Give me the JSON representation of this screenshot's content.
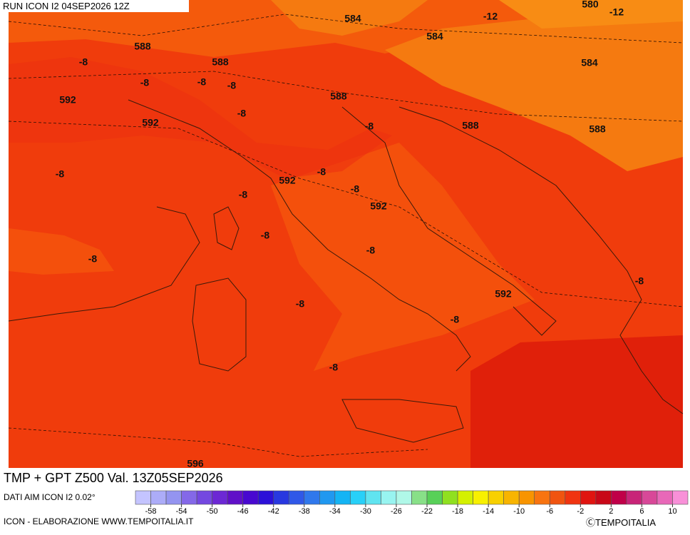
{
  "header": {
    "run": "RUN ICON I2 04SEP2026 12Z",
    "title": "TMP + GPT Z500 Val. 13Z05SEP2026",
    "source": "DATI AIM ICON I2 0.02°",
    "credit_left": "ICON - ELABORAZIONE WWW.TEMPOITALIA.IT",
    "credit_right": "ⒸTEMPOITALIA"
  },
  "map": {
    "labels": [
      "584",
      "580",
      "-12",
      "-12",
      "584",
      "588",
      "-8",
      "588",
      "584",
      "-8",
      "-8",
      "-8",
      "592",
      "588",
      "-8",
      "592",
      "-8",
      "588",
      "588",
      "-8",
      "-8",
      "592",
      "-8",
      "-8",
      "592",
      "-8",
      "-8",
      "-8",
      "-8",
      "592",
      "-8",
      "-8",
      "-8",
      "596"
    ]
  },
  "legend": {
    "colors": [
      "#c4c4ff",
      "#acacf8",
      "#9494f0",
      "#8468e8",
      "#7448e0",
      "#6c28d4",
      "#6010c8",
      "#4808d0",
      "#2c10d8",
      "#2838e0",
      "#3058e8",
      "#3078ec",
      "#2098f0",
      "#14b4f4",
      "#28d0f8",
      "#60e4f0",
      "#98f4f0",
      "#b0f8e8",
      "#88e088",
      "#58d058",
      "#90e020",
      "#d4f000",
      "#f8f000",
      "#f8d000",
      "#f8b400",
      "#f89400",
      "#f87410",
      "#f05410",
      "#f03410",
      "#e01410",
      "#c80818",
      "#c00048",
      "#c82478",
      "#d84898",
      "#e868b8",
      "#f890d8"
    ],
    "ticks": [
      -58,
      -54,
      -50,
      -46,
      -42,
      -38,
      -34,
      -30,
      -26,
      -22,
      -18,
      -14,
      -10,
      -6,
      -2,
      2,
      6,
      10
    ]
  }
}
